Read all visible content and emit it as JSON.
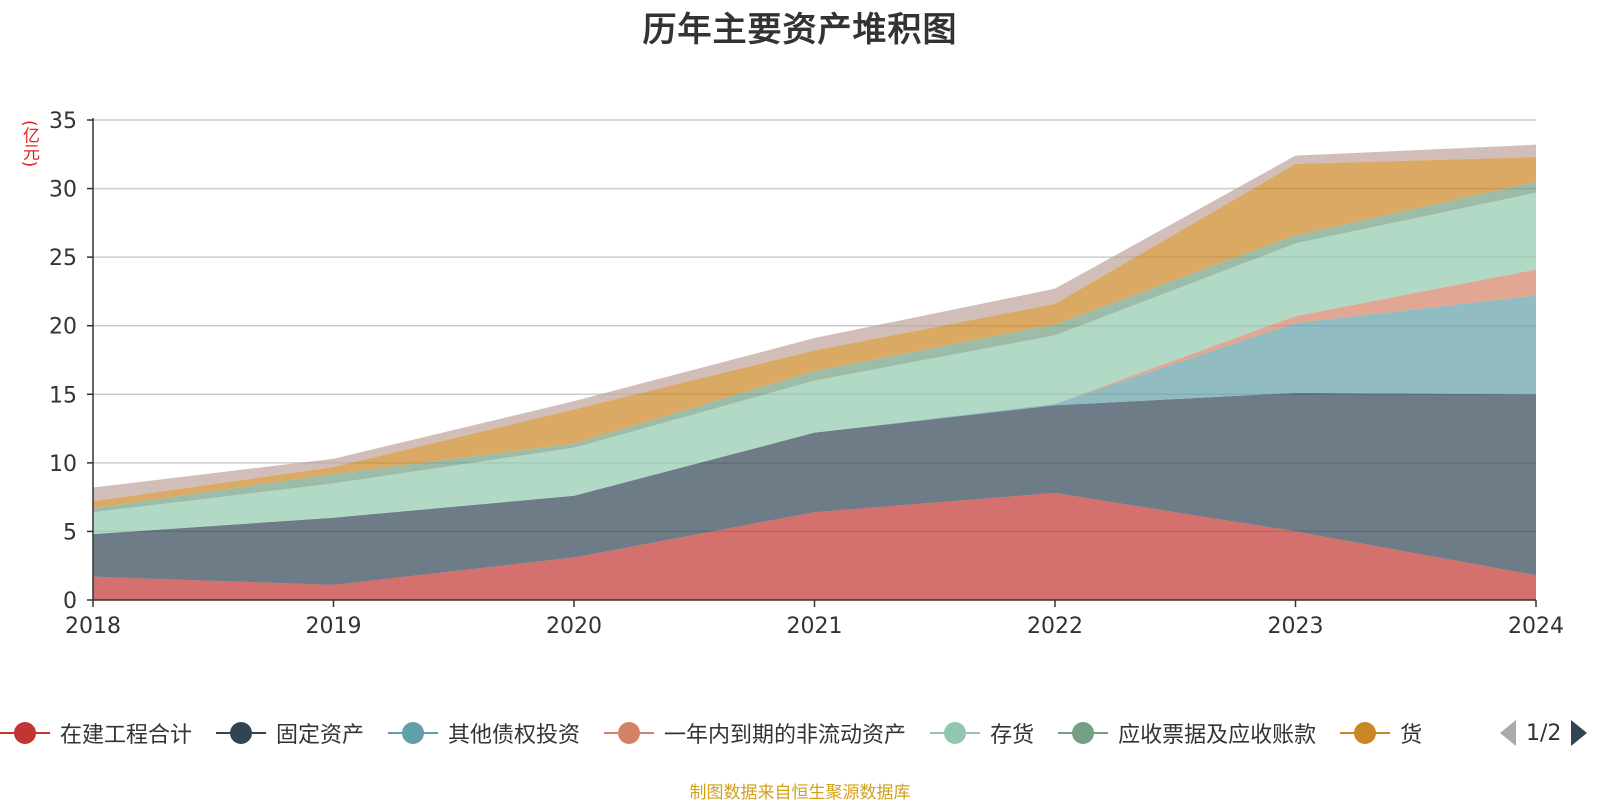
{
  "title": "历年主要资产堆积图",
  "unit_label": "(亿元)",
  "source": "制图数据来自恒生聚源数据库",
  "legend_page": "1/2",
  "chart_data": {
    "type": "area",
    "title": "历年主要资产堆积图",
    "ylabel": "(亿元)",
    "x": [
      "2018",
      "2019",
      "2020",
      "2021",
      "2022",
      "2023",
      "2024"
    ],
    "ylim": [
      0,
      35
    ],
    "yticks": [
      0,
      5,
      10,
      15,
      20,
      25,
      30,
      35
    ],
    "grid": true,
    "stacked": true,
    "legend_position": "bottom",
    "series": [
      {
        "name": "在建工程合计",
        "color": "#c23531",
        "values": [
          1.7,
          1.1,
          3.1,
          6.4,
          7.8,
          5.0,
          1.8
        ]
      },
      {
        "name": "固定资产",
        "color": "#2f4554",
        "values": [
          3.1,
          4.9,
          4.5,
          5.8,
          6.4,
          10.1,
          13.2
        ]
      },
      {
        "name": "其他债权投资",
        "color": "#61a0a8",
        "values": [
          0.0,
          0.0,
          0.0,
          0.0,
          0.1,
          5.1,
          7.2
        ]
      },
      {
        "name": "一年内到期的非流动资产",
        "color": "#d48265",
        "values": [
          0.0,
          0.0,
          0.0,
          0.0,
          0.0,
          0.5,
          1.9
        ]
      },
      {
        "name": "存货",
        "color": "#91c7ae",
        "values": [
          1.6,
          2.5,
          3.5,
          3.8,
          5.0,
          5.3,
          5.6
        ]
      },
      {
        "name": "应收票据及应收账款",
        "color": "#749f83",
        "values": [
          0.3,
          0.7,
          0.3,
          0.7,
          0.8,
          0.6,
          0.8
        ]
      },
      {
        "name": "货",
        "color": "#ca8622",
        "values": [
          0.5,
          0.5,
          2.5,
          1.5,
          1.5,
          5.2,
          1.8
        ]
      },
      {
        "name": "",
        "color": "#bda29a",
        "values": [
          1.0,
          0.6,
          0.6,
          0.9,
          1.1,
          0.6,
          0.9
        ]
      }
    ]
  }
}
